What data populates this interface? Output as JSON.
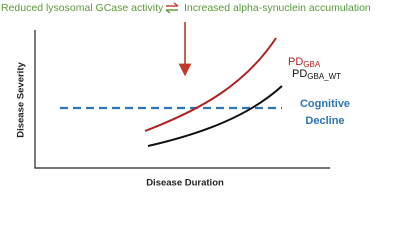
{
  "header": {
    "left": "Reduced lysosomal GCase activity",
    "right": "Increased alpha-synuclein accumulation"
  },
  "axes": {
    "y_label": "Disease Severity",
    "x_label": "Disease Duration"
  },
  "curves": [
    {
      "main": "PD",
      "sub": "GBA"
    },
    {
      "main": "PD",
      "sub": "GBA_WT"
    }
  ],
  "threshold": {
    "line1": "Cognitive",
    "line2": "Decline"
  }
}
